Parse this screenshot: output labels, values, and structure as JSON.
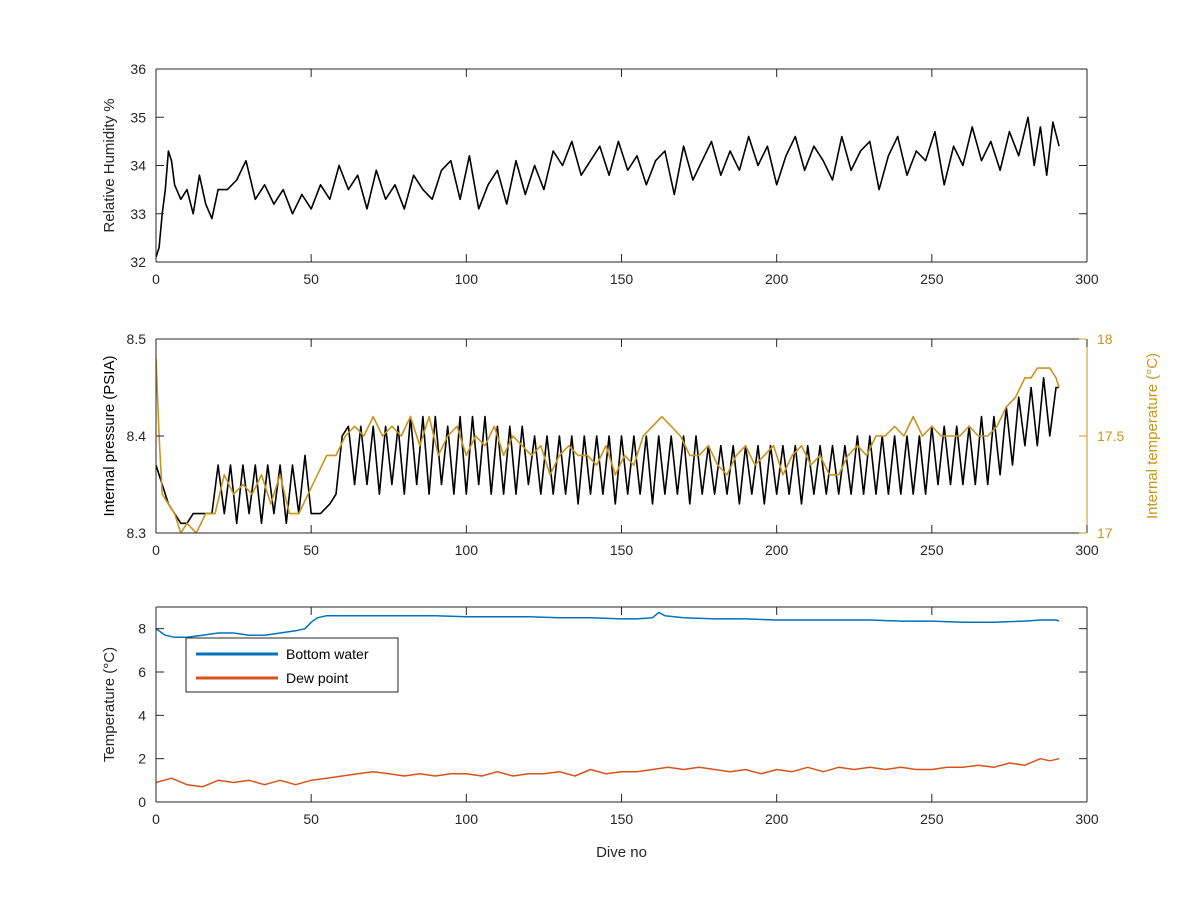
{
  "chart_data": [
    {
      "type": "line",
      "ylabel": "Relative Humidity %",
      "xlim": [
        0,
        300
      ],
      "ylim": [
        32,
        36
      ],
      "xticks": [
        "0",
        "50",
        "100",
        "150",
        "200",
        "250",
        "300"
      ],
      "yticks": [
        "32",
        "33",
        "34",
        "35",
        "36"
      ],
      "series": [
        {
          "color": "#000000",
          "x": [
            0,
            1,
            2,
            3,
            4,
            5,
            6,
            8,
            10,
            12,
            14,
            16,
            18,
            20,
            23,
            26,
            29,
            32,
            35,
            38,
            41,
            44,
            47,
            50,
            53,
            56,
            59,
            62,
            65,
            68,
            71,
            74,
            77,
            80,
            83,
            86,
            89,
            92,
            95,
            98,
            101,
            104,
            107,
            110,
            113,
            116,
            119,
            122,
            125,
            128,
            131,
            134,
            137,
            140,
            143,
            146,
            149,
            152,
            155,
            158,
            161,
            164,
            167,
            170,
            173,
            176,
            179,
            182,
            185,
            188,
            191,
            194,
            197,
            200,
            203,
            206,
            209,
            212,
            215,
            218,
            221,
            224,
            227,
            230,
            233,
            236,
            239,
            242,
            245,
            248,
            251,
            254,
            257,
            260,
            263,
            266,
            269,
            272,
            275,
            278,
            281,
            283,
            285,
            287,
            289,
            291
          ],
          "y": [
            32.1,
            32.3,
            33.0,
            33.5,
            34.3,
            34.1,
            33.6,
            33.3,
            33.5,
            33.0,
            33.8,
            33.2,
            32.9,
            33.5,
            33.5,
            33.7,
            34.1,
            33.3,
            33.6,
            33.2,
            33.5,
            33.0,
            33.4,
            33.1,
            33.6,
            33.3,
            34.0,
            33.5,
            33.8,
            33.1,
            33.9,
            33.3,
            33.6,
            33.1,
            33.8,
            33.5,
            33.3,
            33.9,
            34.1,
            33.3,
            34.2,
            33.1,
            33.6,
            33.9,
            33.2,
            34.1,
            33.4,
            34.0,
            33.5,
            34.3,
            34.0,
            34.5,
            33.8,
            34.1,
            34.4,
            33.8,
            34.5,
            33.9,
            34.2,
            33.6,
            34.1,
            34.3,
            33.4,
            34.4,
            33.7,
            34.1,
            34.5,
            33.8,
            34.3,
            33.9,
            34.6,
            34.0,
            34.4,
            33.6,
            34.2,
            34.6,
            33.9,
            34.4,
            34.1,
            33.7,
            34.6,
            33.9,
            34.3,
            34.5,
            33.5,
            34.2,
            34.6,
            33.8,
            34.3,
            34.1,
            34.7,
            33.6,
            34.4,
            34.0,
            34.8,
            34.1,
            34.5,
            33.9,
            34.7,
            34.2,
            35.0,
            34.0,
            34.8,
            33.8,
            34.9,
            34.4
          ]
        }
      ]
    },
    {
      "type": "line",
      "ylabel": "Internal pressure (PSIA)",
      "y2label": "Internal temperature (°C)",
      "xlim": [
        0,
        300
      ],
      "ylim": [
        8.3,
        8.5
      ],
      "y2lim": [
        17,
        18
      ],
      "xticks": [
        "0",
        "50",
        "100",
        "150",
        "200",
        "250",
        "300"
      ],
      "yticks": [
        "8.3",
        "8.4",
        "8.5"
      ],
      "y2ticks": [
        "17",
        "17.5",
        "18"
      ],
      "series": [
        {
          "color": "#000000",
          "axis": "left",
          "x": [
            0,
            2,
            4,
            6,
            8,
            10,
            12,
            15,
            18,
            20,
            22,
            24,
            26,
            28,
            30,
            32,
            34,
            36,
            38,
            40,
            42,
            44,
            46,
            48,
            50,
            53,
            56,
            58,
            60,
            62,
            64,
            66,
            68,
            70,
            72,
            74,
            76,
            78,
            80,
            82,
            84,
            86,
            88,
            90,
            92,
            94,
            96,
            98,
            100,
            102,
            104,
            106,
            108,
            110,
            112,
            114,
            116,
            118,
            120,
            122,
            124,
            126,
            128,
            130,
            132,
            134,
            136,
            138,
            140,
            142,
            144,
            146,
            148,
            150,
            152,
            154,
            156,
            158,
            160,
            162,
            164,
            166,
            168,
            170,
            172,
            174,
            176,
            178,
            180,
            182,
            184,
            186,
            188,
            190,
            192,
            194,
            196,
            198,
            200,
            202,
            204,
            206,
            208,
            210,
            212,
            214,
            216,
            218,
            220,
            222,
            224,
            226,
            228,
            230,
            232,
            234,
            236,
            238,
            240,
            242,
            244,
            246,
            248,
            250,
            252,
            254,
            256,
            258,
            260,
            262,
            264,
            266,
            268,
            270,
            272,
            274,
            276,
            278,
            280,
            282,
            284,
            286,
            288,
            290,
            291
          ],
          "y": [
            8.37,
            8.35,
            8.33,
            8.32,
            8.31,
            8.31,
            8.32,
            8.32,
            8.32,
            8.37,
            8.32,
            8.37,
            8.31,
            8.37,
            8.32,
            8.37,
            8.31,
            8.37,
            8.32,
            8.37,
            8.31,
            8.37,
            8.32,
            8.38,
            8.32,
            8.32,
            8.33,
            8.34,
            8.4,
            8.41,
            8.35,
            8.41,
            8.35,
            8.41,
            8.34,
            8.41,
            8.35,
            8.41,
            8.34,
            8.42,
            8.35,
            8.42,
            8.34,
            8.42,
            8.35,
            8.41,
            8.34,
            8.42,
            8.34,
            8.42,
            8.35,
            8.42,
            8.34,
            8.41,
            8.34,
            8.41,
            8.34,
            8.41,
            8.35,
            8.4,
            8.34,
            8.4,
            8.34,
            8.4,
            8.34,
            8.4,
            8.33,
            8.4,
            8.34,
            8.4,
            8.34,
            8.4,
            8.33,
            8.4,
            8.34,
            8.4,
            8.34,
            8.4,
            8.33,
            8.4,
            8.34,
            8.4,
            8.34,
            8.4,
            8.33,
            8.4,
            8.34,
            8.39,
            8.34,
            8.39,
            8.34,
            8.39,
            8.33,
            8.39,
            8.34,
            8.39,
            8.33,
            8.39,
            8.34,
            8.39,
            8.34,
            8.39,
            8.33,
            8.39,
            8.34,
            8.39,
            8.34,
            8.39,
            8.34,
            8.39,
            8.34,
            8.4,
            8.34,
            8.4,
            8.34,
            8.4,
            8.34,
            8.4,
            8.34,
            8.4,
            8.34,
            8.4,
            8.34,
            8.41,
            8.35,
            8.41,
            8.35,
            8.41,
            8.35,
            8.41,
            8.35,
            8.42,
            8.35,
            8.42,
            8.36,
            8.43,
            8.37,
            8.44,
            8.39,
            8.45,
            8.39,
            8.46,
            8.4,
            8.45,
            8.45
          ]
        },
        {
          "color": "#c8961e",
          "axis": "right",
          "x": [
            0,
            1,
            2,
            4,
            6,
            8,
            10,
            13,
            16,
            19,
            22,
            25,
            28,
            31,
            34,
            37,
            40,
            43,
            46,
            49,
            52,
            55,
            58,
            61,
            64,
            67,
            70,
            73,
            76,
            79,
            82,
            85,
            88,
            91,
            94,
            97,
            100,
            103,
            106,
            109,
            112,
            115,
            118,
            121,
            124,
            127,
            130,
            133,
            136,
            139,
            142,
            145,
            148,
            151,
            154,
            157,
            160,
            163,
            166,
            169,
            172,
            175,
            178,
            181,
            184,
            187,
            190,
            193,
            196,
            199,
            202,
            205,
            208,
            211,
            214,
            217,
            220,
            223,
            226,
            229,
            232,
            235,
            238,
            241,
            244,
            247,
            250,
            253,
            256,
            259,
            262,
            265,
            268,
            271,
            274,
            277,
            280,
            282,
            284,
            286,
            288,
            290,
            291
          ],
          "y": [
            17.9,
            17.5,
            17.2,
            17.15,
            17.1,
            17.0,
            17.05,
            17.0,
            17.1,
            17.1,
            17.3,
            17.2,
            17.25,
            17.2,
            17.3,
            17.15,
            17.3,
            17.1,
            17.1,
            17.2,
            17.3,
            17.4,
            17.4,
            17.5,
            17.55,
            17.5,
            17.6,
            17.5,
            17.55,
            17.5,
            17.6,
            17.45,
            17.6,
            17.4,
            17.5,
            17.55,
            17.4,
            17.5,
            17.45,
            17.55,
            17.4,
            17.5,
            17.45,
            17.4,
            17.45,
            17.3,
            17.4,
            17.45,
            17.4,
            17.4,
            17.35,
            17.45,
            17.3,
            17.4,
            17.35,
            17.5,
            17.55,
            17.6,
            17.55,
            17.5,
            17.4,
            17.4,
            17.45,
            17.35,
            17.3,
            17.4,
            17.45,
            17.35,
            17.4,
            17.45,
            17.3,
            17.4,
            17.45,
            17.35,
            17.4,
            17.3,
            17.3,
            17.4,
            17.45,
            17.4,
            17.5,
            17.5,
            17.55,
            17.5,
            17.6,
            17.5,
            17.55,
            17.5,
            17.5,
            17.5,
            17.55,
            17.5,
            17.5,
            17.55,
            17.65,
            17.7,
            17.8,
            17.8,
            17.85,
            17.85,
            17.85,
            17.8,
            17.75
          ]
        }
      ]
    },
    {
      "type": "line",
      "xlabel": "Dive no",
      "ylabel": "Temperature (°C)",
      "xlim": [
        0,
        300
      ],
      "ylim": [
        0,
        9
      ],
      "xticks": [
        "0",
        "50",
        "100",
        "150",
        "200",
        "250",
        "300"
      ],
      "yticks": [
        "0",
        "2",
        "4",
        "6",
        "8"
      ],
      "legend": {
        "location": "top-left",
        "entries": [
          "Bottom water",
          "Dew point"
        ]
      },
      "series": [
        {
          "name": "Bottom water",
          "color": "#0072bd",
          "x": [
            0,
            3,
            6,
            10,
            15,
            20,
            25,
            30,
            35,
            40,
            45,
            48,
            50,
            52,
            55,
            60,
            70,
            80,
            90,
            100,
            110,
            120,
            130,
            140,
            150,
            155,
            160,
            162,
            164,
            170,
            180,
            190,
            200,
            210,
            220,
            230,
            240,
            250,
            260,
            270,
            280,
            285,
            290,
            291
          ],
          "y": [
            8.0,
            7.7,
            7.6,
            7.6,
            7.7,
            7.8,
            7.8,
            7.7,
            7.7,
            7.8,
            7.9,
            8.0,
            8.3,
            8.5,
            8.6,
            8.6,
            8.6,
            8.6,
            8.6,
            8.55,
            8.55,
            8.55,
            8.5,
            8.5,
            8.45,
            8.45,
            8.5,
            8.75,
            8.6,
            8.5,
            8.45,
            8.45,
            8.4,
            8.4,
            8.4,
            8.4,
            8.35,
            8.35,
            8.3,
            8.3,
            8.35,
            8.4,
            8.4,
            8.35
          ]
        },
        {
          "name": "Dew point",
          "color": "#d95319",
          "x": [
            0,
            5,
            10,
            15,
            20,
            25,
            30,
            35,
            40,
            45,
            50,
            55,
            60,
            65,
            70,
            75,
            80,
            85,
            90,
            95,
            100,
            105,
            110,
            115,
            120,
            125,
            130,
            135,
            140,
            145,
            150,
            155,
            160,
            165,
            170,
            175,
            180,
            185,
            190,
            195,
            200,
            205,
            210,
            215,
            220,
            225,
            230,
            235,
            240,
            245,
            250,
            255,
            260,
            265,
            270,
            275,
            280,
            285,
            288,
            291
          ],
          "y": [
            0.9,
            1.1,
            0.8,
            0.7,
            1.0,
            0.9,
            1.0,
            0.8,
            1.0,
            0.8,
            1.0,
            1.1,
            1.2,
            1.3,
            1.4,
            1.3,
            1.2,
            1.3,
            1.2,
            1.3,
            1.3,
            1.2,
            1.4,
            1.2,
            1.3,
            1.3,
            1.4,
            1.2,
            1.5,
            1.3,
            1.4,
            1.4,
            1.5,
            1.6,
            1.5,
            1.6,
            1.5,
            1.4,
            1.5,
            1.3,
            1.5,
            1.4,
            1.6,
            1.4,
            1.6,
            1.5,
            1.6,
            1.5,
            1.6,
            1.5,
            1.5,
            1.6,
            1.6,
            1.7,
            1.6,
            1.8,
            1.7,
            2.0,
            1.9,
            2.0
          ]
        }
      ]
    }
  ]
}
